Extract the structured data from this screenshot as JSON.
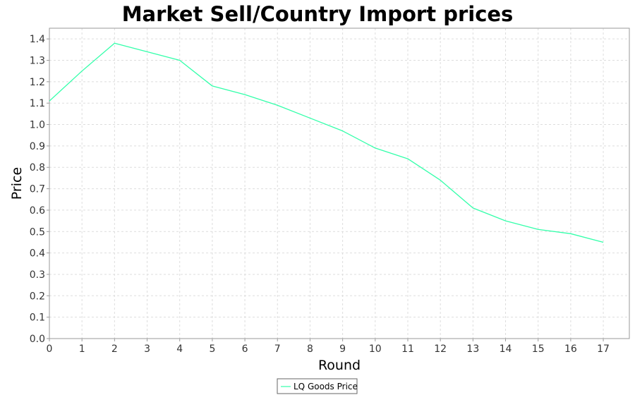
{
  "chart_data": {
    "type": "line",
    "title": "Market Sell/Country Import prices",
    "xlabel": "Round",
    "ylabel": "Price",
    "xlim": [
      0,
      17.8
    ],
    "ylim": [
      0.0,
      1.45
    ],
    "x_ticks": [
      "0",
      "1",
      "2",
      "3",
      "4",
      "5",
      "6",
      "7",
      "8",
      "9",
      "10",
      "11",
      "12",
      "13",
      "14",
      "15",
      "16",
      "17"
    ],
    "y_ticks": [
      "0.0",
      "0.1",
      "0.2",
      "0.3",
      "0.4",
      "0.5",
      "0.6",
      "0.7",
      "0.8",
      "0.9",
      "1.0",
      "1.1",
      "1.2",
      "1.3",
      "1.4"
    ],
    "grid": true,
    "legend_position": "bottom",
    "series": [
      {
        "name": "LQ Goods Price",
        "color": "#33ffaa",
        "x": [
          0,
          1,
          2,
          3,
          4,
          5,
          6,
          7,
          8,
          9,
          10,
          11,
          12,
          13,
          14,
          15,
          16,
          17
        ],
        "y": [
          1.11,
          1.25,
          1.38,
          1.34,
          1.3,
          1.18,
          1.14,
          1.09,
          1.03,
          0.97,
          0.89,
          0.84,
          0.74,
          0.61,
          0.55,
          0.51,
          0.49,
          0.45
        ]
      }
    ]
  }
}
